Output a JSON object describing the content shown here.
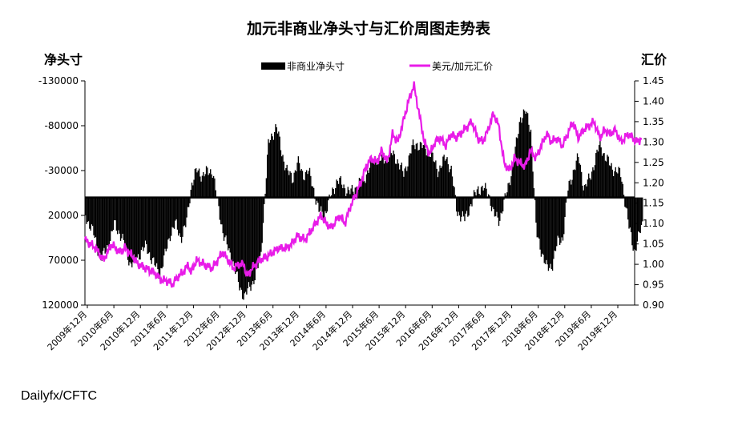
{
  "source_label": "Dailyfx/CFTC",
  "chart_data": {
    "type": "bar+line",
    "title": "加元非商业净头寸与汇价周图走势表",
    "left_axis_label": "净头寸",
    "right_axis_label": "汇价",
    "legend": {
      "position": "top",
      "items": [
        "非商业净头寸",
        "美元/加元汇价"
      ]
    },
    "left_axis": {
      "reversed": true,
      "min": -130000,
      "max": 120000,
      "ticks": [
        -130000,
        -80000,
        -30000,
        20000,
        70000,
        120000
      ]
    },
    "right_axis": {
      "min": 0.9,
      "max": 1.45,
      "ticks": [
        "1.45",
        "1.40",
        "1.35",
        "1.30",
        "1.25",
        "1.20",
        "1.15",
        "1.10",
        "1.05",
        "1.00",
        "0.95",
        "0.90"
      ]
    },
    "x_ticks": [
      "2009年12月",
      "2010年6月",
      "2010年12月",
      "2011年6月",
      "2011年12月",
      "2012年6月",
      "2012年12月",
      "2013年6月",
      "2013年12月",
      "2014年6月",
      "2014年12月",
      "2015年6月",
      "2015年12月",
      "2016年6月",
      "2016年12月",
      "2017年6月",
      "2017年12月",
      "2018年6月",
      "2018年12月",
      "2019年6月",
      "2019年12月"
    ],
    "colors": {
      "bars": "#000000",
      "line": "#e81ce8",
      "axis": "#000000"
    },
    "series": [
      {
        "name": "非商业净头寸",
        "kind": "bar",
        "axis": "left",
        "anchors_t": [
          0.0,
          0.3,
          0.6,
          0.9,
          1.1,
          1.3,
          1.5,
          1.7,
          1.9,
          2.1,
          2.3,
          2.6,
          2.8,
          3.0,
          3.2,
          3.4,
          3.6,
          3.8,
          4.0,
          4.2,
          4.4,
          4.6,
          4.8,
          5.0,
          5.2,
          5.4,
          5.6,
          5.8,
          6.0,
          6.3,
          6.6,
          6.9,
          7.2,
          7.4,
          7.6,
          7.8,
          8.0,
          8.2,
          8.4,
          8.6,
          8.8,
          9.0,
          9.3,
          9.5,
          9.8,
          10.0,
          10.3,
          10.5,
          10.8,
          11.0,
          11.2,
          11.5,
          11.8,
          12.0,
          12.3,
          12.5,
          12.8,
          13.0,
          13.3,
          13.6,
          13.8,
          14.0,
          14.3,
          14.5,
          14.8,
          15.0,
          15.2,
          15.4,
          15.6,
          15.8,
          16.0,
          16.2,
          16.4,
          16.6,
          16.8,
          17.0,
          17.2,
          17.4,
          17.6,
          17.8,
          18.0,
          18.2,
          18.4,
          18.6,
          18.8,
          19.0,
          19.2,
          19.4,
          19.6,
          19.8,
          20.0,
          20.2,
          20.5,
          20.7,
          21.0
        ],
        "anchors_v": [
          20000,
          40000,
          70000,
          50000,
          30000,
          40000,
          55000,
          75000,
          70000,
          60000,
          55000,
          75000,
          85000,
          65000,
          40000,
          30000,
          45000,
          30000,
          -15000,
          -30000,
          -25000,
          -28000,
          -30000,
          10000,
          40000,
          60000,
          75000,
          100000,
          110000,
          95000,
          70000,
          -60000,
          -80000,
          -50000,
          -30000,
          -20000,
          -40000,
          -25000,
          -30000,
          -10000,
          15000,
          20000,
          -5000,
          -20000,
          -10000,
          -5000,
          -15000,
          -20000,
          -40000,
          -45000,
          -40000,
          -50000,
          -40000,
          -25000,
          -55000,
          -60000,
          -55000,
          -50000,
          -30000,
          -45000,
          -30000,
          15000,
          25000,
          10000,
          -10000,
          -10000,
          -5000,
          20000,
          25000,
          5000,
          -20000,
          -50000,
          -90000,
          -95000,
          -75000,
          40000,
          60000,
          80000,
          75000,
          50000,
          45000,
          -10000,
          -30000,
          -45000,
          -10000,
          -20000,
          -40000,
          -60000,
          -45000,
          -35000,
          -30000,
          -25000,
          35000,
          60000,
          30000
        ]
      },
      {
        "name": "美元/加元汇价",
        "kind": "line",
        "axis": "right",
        "anchors_t": [
          0.0,
          0.4,
          0.7,
          1.0,
          1.3,
          1.5,
          1.8,
          2.0,
          2.3,
          2.6,
          2.9,
          3.1,
          3.3,
          3.5,
          3.7,
          3.9,
          4.0,
          4.2,
          4.5,
          4.8,
          5.0,
          5.2,
          5.4,
          5.6,
          5.8,
          6.0,
          6.1,
          6.3,
          6.6,
          6.9,
          7.1,
          7.3,
          7.6,
          7.8,
          8.0,
          8.3,
          8.6,
          8.9,
          9.1,
          9.3,
          9.6,
          9.8,
          10.0,
          10.2,
          10.4,
          10.6,
          10.8,
          11.0,
          11.2,
          11.4,
          11.6,
          11.8,
          12.0,
          12.2,
          12.4,
          12.6,
          12.8,
          13.0,
          13.2,
          13.4,
          13.6,
          13.8,
          14.0,
          14.3,
          14.6,
          14.8,
          15.0,
          15.2,
          15.4,
          15.6,
          15.8,
          16.0,
          16.2,
          16.4,
          16.6,
          16.8,
          17.0,
          17.2,
          17.4,
          17.6,
          17.8,
          18.0,
          18.2,
          18.4,
          18.6,
          18.8,
          19.0,
          19.2,
          19.4,
          19.6,
          19.8,
          20.0,
          20.2,
          20.5,
          20.8,
          21.0
        ],
        "anchors_v": [
          1.06,
          1.04,
          1.01,
          1.05,
          1.03,
          1.04,
          1.02,
          1.0,
          0.99,
          0.98,
          0.96,
          0.96,
          0.95,
          0.97,
          0.98,
          1.0,
          0.98,
          1.01,
          1.0,
          0.99,
          1.01,
          1.03,
          1.01,
          0.99,
          1.0,
          1.0,
          0.97,
          0.99,
          1.01,
          1.02,
          1.03,
          1.04,
          1.04,
          1.05,
          1.07,
          1.06,
          1.09,
          1.12,
          1.1,
          1.09,
          1.12,
          1.1,
          1.14,
          1.17,
          1.2,
          1.24,
          1.26,
          1.25,
          1.28,
          1.25,
          1.32,
          1.3,
          1.35,
          1.4,
          1.44,
          1.37,
          1.3,
          1.27,
          1.3,
          1.31,
          1.29,
          1.32,
          1.31,
          1.33,
          1.35,
          1.31,
          1.3,
          1.33,
          1.37,
          1.34,
          1.25,
          1.23,
          1.26,
          1.25,
          1.24,
          1.28,
          1.26,
          1.29,
          1.32,
          1.3,
          1.31,
          1.29,
          1.32,
          1.35,
          1.31,
          1.33,
          1.34,
          1.35,
          1.31,
          1.33,
          1.32,
          1.33,
          1.3,
          1.32,
          1.3,
          1.31
        ]
      }
    ]
  }
}
